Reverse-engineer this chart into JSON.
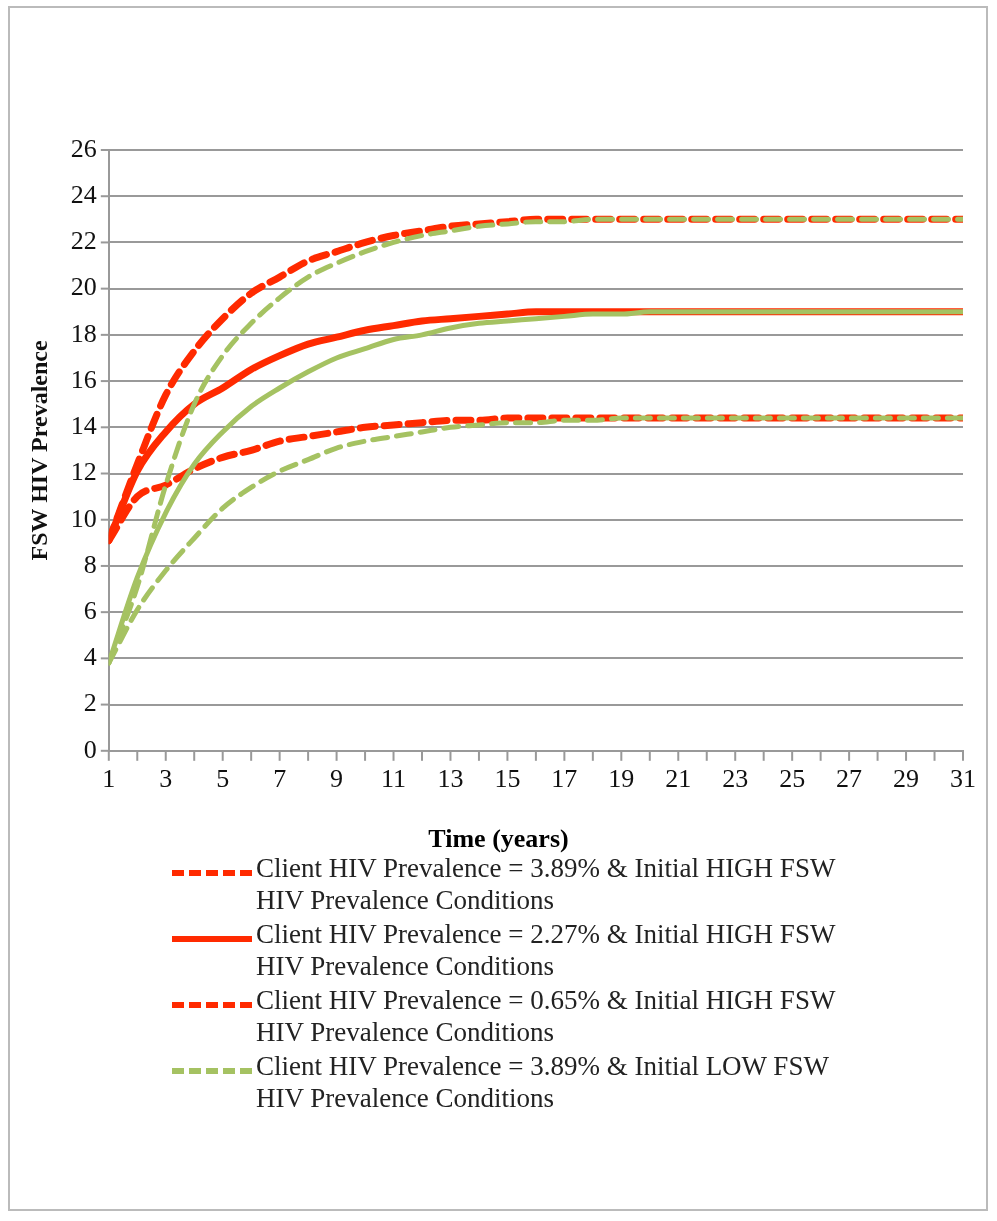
{
  "chart_data": {
    "type": "line",
    "xlabel": "Time (years)",
    "ylabel": "FSW HIV Prevalence",
    "x": [
      1,
      2,
      3,
      4,
      5,
      6,
      7,
      8,
      9,
      10,
      11,
      12,
      13,
      14,
      15,
      16,
      17,
      18,
      19,
      20,
      21,
      22,
      23,
      24,
      25,
      26,
      27,
      28,
      29,
      30,
      31
    ],
    "xlim": [
      1,
      31
    ],
    "xticks": [
      1,
      3,
      5,
      7,
      9,
      11,
      13,
      15,
      17,
      19,
      21,
      23,
      25,
      27,
      29,
      31
    ],
    "ylim": [
      0,
      26
    ],
    "yticks": [
      0,
      2,
      4,
      6,
      8,
      10,
      12,
      14,
      16,
      18,
      20,
      22,
      24,
      26
    ],
    "grid": "y",
    "legend": "bottom",
    "marker": "none",
    "series": [
      {
        "name": "Client HIV Prevalence = 3.89% & Initial HIGH FSW HIV Prevalence Conditions",
        "color": "#ff2a00",
        "line_style": "dashed",
        "values": [
          9.1,
          12.4,
          15.4,
          17.3,
          18.7,
          19.8,
          20.5,
          21.2,
          21.6,
          22.0,
          22.3,
          22.5,
          22.7,
          22.8,
          22.9,
          23.0,
          23.0,
          23.0,
          23.0,
          23.0,
          23.0,
          23.0,
          23.0,
          23.0,
          23.0,
          23.0,
          23.0,
          23.0,
          23.0,
          23.0,
          23.0
        ]
      },
      {
        "name": "Client HIV Prevalence = 2.27% & Initial HIGH FSW HIV Prevalence Conditions",
        "color": "#ff2a00",
        "line_style": "solid",
        "values": [
          9.1,
          12.1,
          13.8,
          15.0,
          15.7,
          16.5,
          17.1,
          17.6,
          17.9,
          18.2,
          18.4,
          18.6,
          18.7,
          18.8,
          18.9,
          19.0,
          19.0,
          19.0,
          19.0,
          19.0,
          19.0,
          19.0,
          19.0,
          19.0,
          19.0,
          19.0,
          19.0,
          19.0,
          19.0,
          19.0,
          19.0
        ]
      },
      {
        "name": "Client HIV Prevalence = 0.65% & Initial HIGH FSW HIV Prevalence Conditions",
        "color": "#ff2a00",
        "line_style": "dashed",
        "values": [
          9.1,
          11.0,
          11.5,
          12.2,
          12.7,
          13.0,
          13.4,
          13.6,
          13.8,
          14.0,
          14.1,
          14.2,
          14.3,
          14.3,
          14.4,
          14.4,
          14.4,
          14.4,
          14.4,
          14.4,
          14.4,
          14.4,
          14.4,
          14.4,
          14.4,
          14.4,
          14.4,
          14.4,
          14.4,
          14.4,
          14.4
        ]
      },
      {
        "name": "Client HIV Prevalence = 3.89% & Initial LOW FSW HIV Prevalence Conditions",
        "color": "#a5c262",
        "line_style": "dashed",
        "values": [
          3.8,
          7.1,
          11.5,
          15.0,
          17.1,
          18.5,
          19.6,
          20.5,
          21.1,
          21.6,
          22.0,
          22.3,
          22.5,
          22.7,
          22.8,
          22.9,
          22.9,
          23.0,
          23.0,
          23.0,
          23.0,
          23.0,
          23.0,
          23.0,
          23.0,
          23.0,
          23.0,
          23.0,
          23.0,
          23.0,
          23.0
        ]
      },
      {
        "color": "#a5c262",
        "line_style": "solid",
        "values": [
          3.8,
          7.5,
          10.3,
          12.4,
          13.8,
          14.9,
          15.7,
          16.4,
          17.0,
          17.4,
          17.8,
          18.0,
          18.3,
          18.5,
          18.6,
          18.7,
          18.8,
          18.9,
          18.9,
          19.0,
          19.0,
          19.0,
          19.0,
          19.0,
          19.0,
          19.0,
          19.0,
          19.0,
          19.0,
          19.0,
          19.0
        ]
      },
      {
        "color": "#a5c262",
        "line_style": "dashed",
        "values": [
          3.8,
          6.1,
          7.8,
          9.2,
          10.5,
          11.4,
          12.1,
          12.6,
          13.1,
          13.4,
          13.6,
          13.8,
          14.0,
          14.1,
          14.2,
          14.2,
          14.3,
          14.3,
          14.4,
          14.4,
          14.4,
          14.4,
          14.4,
          14.4,
          14.4,
          14.4,
          14.4,
          14.4,
          14.4,
          14.4,
          14.4
        ]
      }
    ]
  }
}
